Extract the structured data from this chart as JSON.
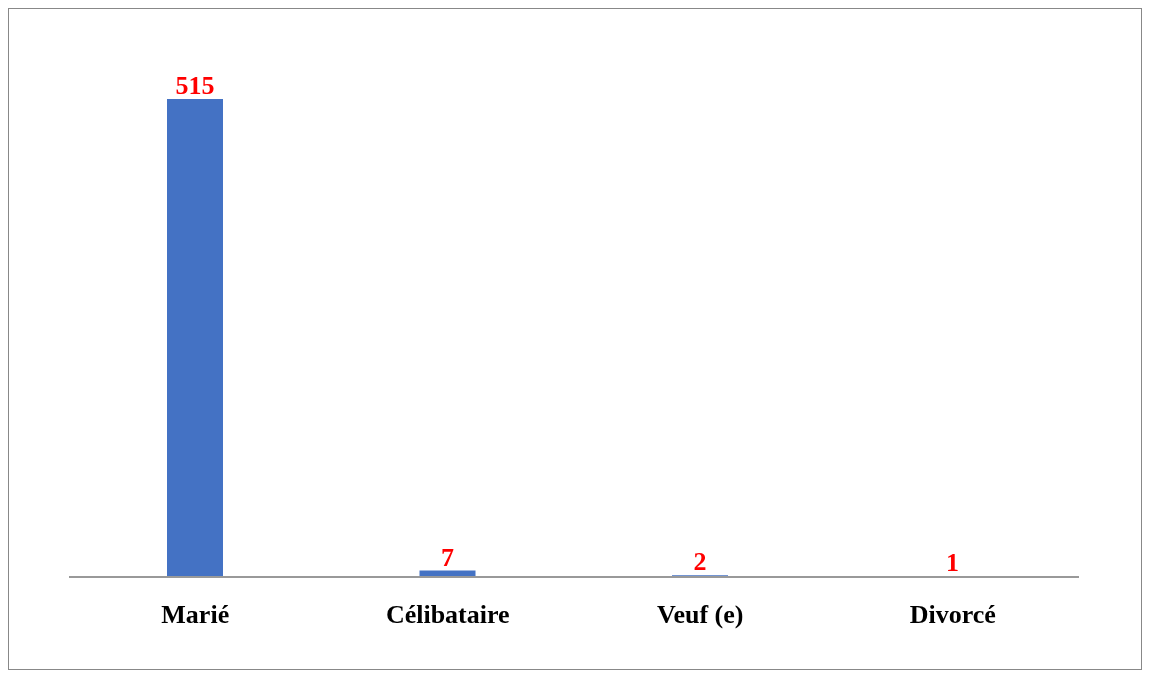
{
  "chart_data": {
    "type": "bar",
    "categories": [
      "Marié",
      "Célibataire",
      "Veuf (e)",
      "Divorcé"
    ],
    "values": [
      515,
      7,
      2,
      1
    ],
    "color": "#4472c4",
    "data_labels": true
  }
}
